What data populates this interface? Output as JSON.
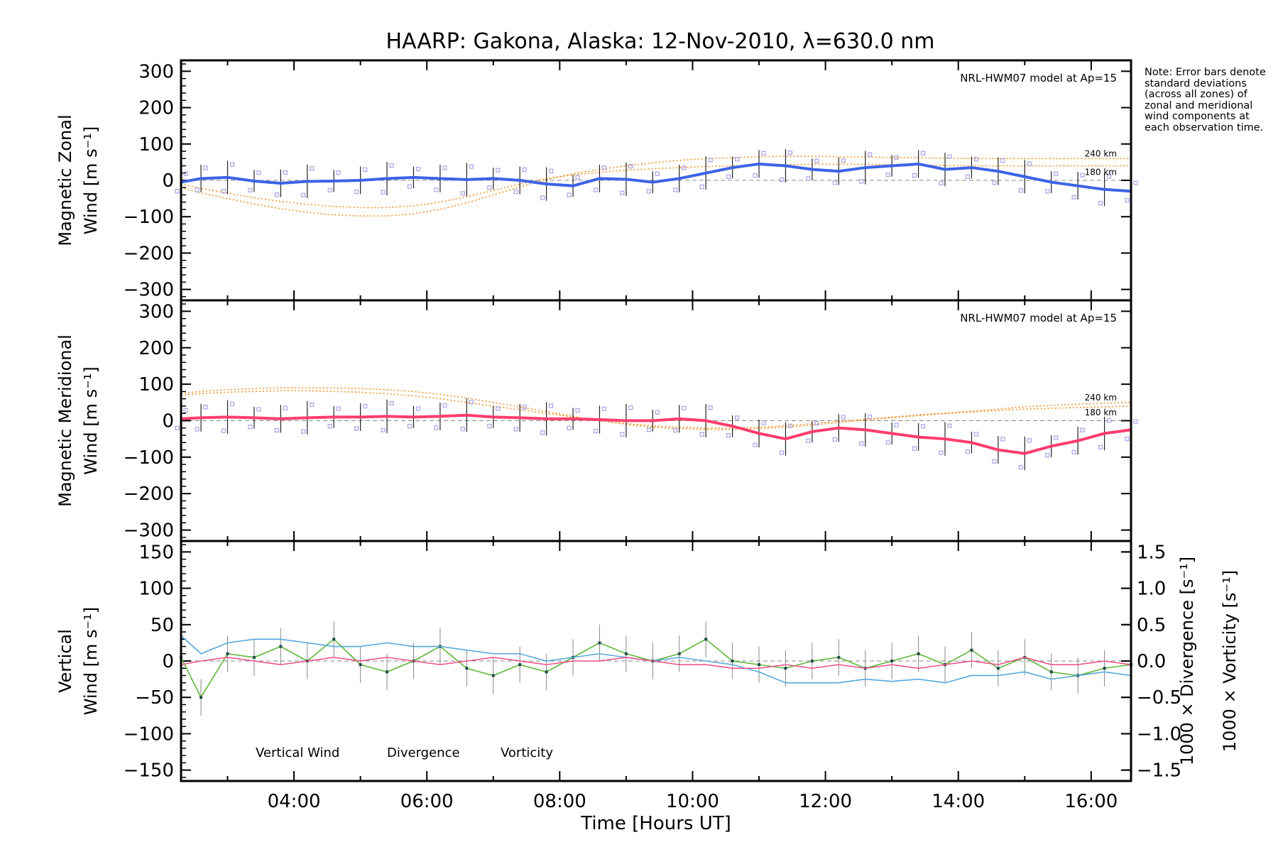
{
  "title": "HAARP: Gakona,  Alaska: 12-Nov-2010, λ=630.0 nm",
  "note": "Note: Error bars denote standard deviations (across all zones) of zonal and meridional wind components at each observation time.",
  "colors": {
    "zonal": "#3d63e6",
    "zonal_light": "#5aaee8",
    "meridional": "#ff3d6e",
    "model": "#f0922a",
    "vertical": "#5fb83a",
    "divergence": "#55a8dc",
    "vorticity": "#f0508a",
    "scatter": "#a7a3e6"
  },
  "chart_data": [
    {
      "type": "line",
      "id": "zonal",
      "ylabel_line1": "Magnetic Zonal",
      "ylabel_line2": "Wind [m s⁻¹]",
      "annotation": "NRL-HWM07 model at Ap=15",
      "model_labels": [
        "240 km",
        "180 km"
      ],
      "xlim": [
        2.3,
        16.6
      ],
      "ylim": [
        -330,
        330
      ],
      "yticks": [
        300,
        200,
        100,
        0,
        -100,
        -200,
        -300
      ],
      "x": [
        2.3,
        2.6,
        3.0,
        3.4,
        3.8,
        4.2,
        4.6,
        5.0,
        5.4,
        5.8,
        6.2,
        6.6,
        7.0,
        7.4,
        7.8,
        8.2,
        8.6,
        9.0,
        9.4,
        9.8,
        10.2,
        10.6,
        11.0,
        11.4,
        11.8,
        12.2,
        12.6,
        13.0,
        13.4,
        13.8,
        14.2,
        14.6,
        15.0,
        15.4,
        15.8,
        16.2,
        16.6
      ],
      "series": [
        {
          "values": [
            -5,
            5,
            8,
            -2,
            -8,
            -3,
            -2,
            0,
            5,
            8,
            5,
            2,
            5,
            0,
            -10,
            -15,
            5,
            3,
            -5,
            5,
            20,
            35,
            45,
            40,
            30,
            25,
            35,
            40,
            45,
            30,
            35,
            25,
            10,
            -5,
            -15,
            -25,
            -30
          ]
        }
      ],
      "model_series": [
        {
          "name": "240 km",
          "values": [
            -20,
            -35,
            -50,
            -65,
            -78,
            -88,
            -95,
            -98,
            -98,
            -92,
            -80,
            -62,
            -40,
            -18,
            2,
            18,
            30,
            40,
            48,
            55,
            60,
            62,
            65,
            66,
            66,
            65,
            64,
            63,
            62,
            61,
            60,
            60,
            60,
            60,
            60,
            60,
            60
          ]
        },
        {
          "name": "180 km",
          "values": [
            -10,
            -22,
            -35,
            -48,
            -58,
            -66,
            -72,
            -75,
            -75,
            -70,
            -60,
            -45,
            -28,
            -10,
            5,
            15,
            22,
            28,
            32,
            35,
            38,
            40,
            42,
            43,
            44,
            44,
            44,
            43,
            42,
            41,
            40,
            40,
            40,
            40,
            40,
            40,
            40
          ]
        }
      ]
    },
    {
      "type": "line",
      "id": "meridional",
      "ylabel_line1": "Magnetic Meridional",
      "ylabel_line2": "Wind [m s⁻¹]",
      "annotation": "NRL-HWM07 model at Ap=15",
      "model_labels": [
        "240 km",
        "180 km"
      ],
      "xlim": [
        2.3,
        16.6
      ],
      "ylim": [
        -330,
        330
      ],
      "yticks": [
        300,
        200,
        100,
        0,
        -100,
        -200,
        -300
      ],
      "x": [
        2.3,
        2.6,
        3.0,
        3.4,
        3.8,
        4.2,
        4.6,
        5.0,
        5.4,
        5.8,
        6.2,
        6.6,
        7.0,
        7.4,
        7.8,
        8.2,
        8.6,
        9.0,
        9.4,
        9.8,
        10.2,
        10.6,
        11.0,
        11.4,
        11.8,
        12.2,
        12.6,
        13.0,
        13.4,
        13.8,
        14.2,
        14.6,
        15.0,
        15.4,
        15.8,
        16.2,
        16.6
      ],
      "series": [
        {
          "values": [
            5,
            8,
            10,
            8,
            5,
            8,
            10,
            10,
            12,
            10,
            12,
            15,
            10,
            8,
            5,
            5,
            3,
            0,
            0,
            5,
            0,
            -15,
            -35,
            -50,
            -30,
            -20,
            -25,
            -35,
            -45,
            -50,
            -60,
            -80,
            -90,
            -70,
            -55,
            -35,
            -25
          ]
        }
      ],
      "model_series": [
        {
          "name": "240 km",
          "values": [
            75,
            80,
            85,
            88,
            90,
            90,
            90,
            88,
            85,
            80,
            72,
            62,
            50,
            38,
            25,
            12,
            0,
            -10,
            -18,
            -22,
            -24,
            -24,
            -22,
            -18,
            -12,
            -5,
            2,
            8,
            14,
            20,
            26,
            32,
            38,
            42,
            45,
            48,
            50
          ]
        },
        {
          "name": "180 km",
          "values": [
            70,
            74,
            78,
            80,
            82,
            82,
            80,
            78,
            74,
            68,
            60,
            50,
            40,
            30,
            20,
            10,
            0,
            -8,
            -14,
            -18,
            -20,
            -20,
            -18,
            -14,
            -8,
            -2,
            4,
            10,
            16,
            20,
            24,
            28,
            32,
            34,
            36,
            38,
            40
          ]
        }
      ]
    },
    {
      "type": "line",
      "id": "vertical",
      "ylabel_line1": "Vertical",
      "ylabel_line2": "Wind [m s⁻¹]",
      "y2label_line1": "1000 × Divergence [s⁻¹]",
      "y2label_line2": "1000 × Vorticity [s⁻¹]",
      "xlabel": "Time [Hours UT]",
      "xlim": [
        2.3,
        16.6
      ],
      "ylim": [
        -165,
        165
      ],
      "yticks": [
        150,
        100,
        50,
        0,
        -50,
        -100,
        -150
      ],
      "y2lim": [
        -1.65,
        1.65
      ],
      "y2ticks": [
        1.5,
        1.0,
        0.5,
        0.0,
        -0.5,
        -1.0,
        -1.5
      ],
      "xticks": [
        4,
        6,
        8,
        10,
        12,
        14,
        16
      ],
      "xticklabels": [
        "04:00",
        "06:00",
        "08:00",
        "10:00",
        "12:00",
        "14:00",
        "16:00"
      ],
      "legend": [
        "Vertical Wind",
        "Divergence",
        "Vorticity"
      ],
      "x": [
        2.3,
        2.6,
        3.0,
        3.4,
        3.8,
        4.2,
        4.6,
        5.0,
        5.4,
        5.8,
        6.2,
        6.6,
        7.0,
        7.4,
        7.8,
        8.2,
        8.6,
        9.0,
        9.4,
        9.8,
        10.2,
        10.6,
        11.0,
        11.4,
        11.8,
        12.2,
        12.6,
        13.0,
        13.4,
        13.8,
        14.2,
        14.6,
        15.0,
        15.4,
        15.8,
        16.2,
        16.6
      ],
      "series": [
        {
          "name": "Vertical Wind",
          "values": [
            5,
            -50,
            10,
            5,
            20,
            0,
            30,
            -5,
            -15,
            0,
            20,
            -10,
            -20,
            -5,
            -15,
            5,
            25,
            10,
            0,
            10,
            30,
            0,
            -5,
            -10,
            0,
            5,
            -10,
            0,
            10,
            -5,
            15,
            -10,
            5,
            -15,
            -20,
            -10,
            -5
          ]
        },
        {
          "name": "Divergence",
          "values": [
            0.35,
            0.1,
            0.25,
            0.3,
            0.3,
            0.25,
            0.2,
            0.2,
            0.25,
            0.2,
            0.2,
            0.15,
            0.1,
            0.1,
            0.0,
            0.05,
            0.1,
            0.05,
            0.0,
            0.05,
            0.0,
            -0.05,
            -0.15,
            -0.3,
            -0.3,
            -0.3,
            -0.25,
            -0.28,
            -0.25,
            -0.3,
            -0.2,
            -0.2,
            -0.15,
            -0.25,
            -0.2,
            -0.15,
            -0.2
          ]
        },
        {
          "name": "Vorticity",
          "values": [
            -0.05,
            0.0,
            0.05,
            0.0,
            -0.05,
            0.0,
            0.05,
            0.0,
            0.05,
            0.0,
            -0.05,
            0.0,
            0.05,
            0.0,
            -0.05,
            0.0,
            0.0,
            0.05,
            0.0,
            -0.05,
            -0.05,
            -0.1,
            -0.1,
            -0.05,
            -0.1,
            -0.05,
            -0.1,
            -0.05,
            -0.1,
            -0.05,
            0.0,
            -0.05,
            0.05,
            -0.05,
            -0.05,
            0.0,
            -0.05
          ]
        }
      ]
    }
  ]
}
